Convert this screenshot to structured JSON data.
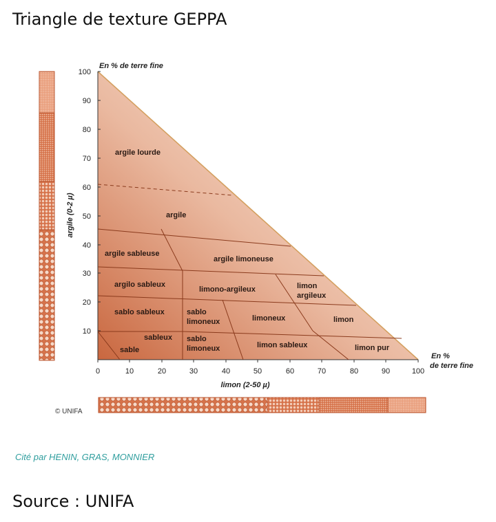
{
  "page_title": "Triangle de texture GEPPA",
  "citation": "Cité par HENIN, GRAS, MONNIER",
  "source": "Source : UNIFA",
  "copyright": "© UNIFA",
  "diagram": {
    "y_axis_top_label": "En % de terre fine",
    "y_axis_title": "argile (0-2 µ)",
    "x_axis_title": "limon (2-50 µ)",
    "x_axis_end_label_line1": "En %",
    "x_axis_end_label_line2": "de terre fine",
    "y_ticks": [
      "0",
      "10",
      "20",
      "30",
      "40",
      "50",
      "60",
      "70",
      "80",
      "90",
      "100"
    ],
    "x_ticks": [
      "0",
      "10",
      "20",
      "30",
      "40",
      "50",
      "60",
      "70",
      "80",
      "90",
      "100"
    ],
    "regions": {
      "argile_lourde": "argile lourde",
      "argile": "argile",
      "argile_sableuse": "argile sableuse",
      "argile_limoneuse": "argile limoneuse",
      "argilo_sableux": "argilo sableux",
      "limono_argileux": "limono-argileux",
      "limon_argileux_1": "limon",
      "limon_argileux_2": "argileux",
      "sablo_sableux": "sablo sableux",
      "sablo_limoneux_a_1": "sablo",
      "sablo_limoneux_a_2": "limoneux",
      "limoneux": "limoneux",
      "limon": "limon",
      "sableux": "sableux",
      "sable": "sable",
      "sablo_limoneux_b_1": "sablo",
      "sablo_limoneux_b_2": "limoneux",
      "limon_sableux": "limon sableux",
      "limon_pur": "limon pur"
    },
    "colors": {
      "fill_dark": "#c8643c",
      "fill_light": "#fbe8dd",
      "line": "#8a3a1c",
      "hypotenuse": "#d4a060",
      "bar_bg": "#d97a52"
    }
  }
}
